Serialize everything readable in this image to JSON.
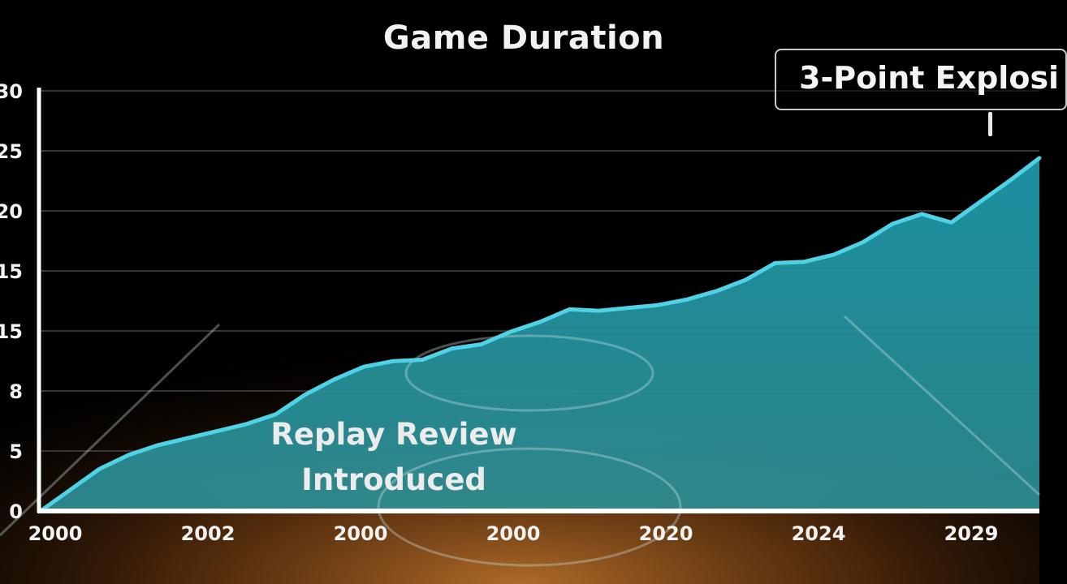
{
  "chart_data": {
    "type": "area",
    "title": "Game Duration",
    "xlabel": "",
    "ylabel": "",
    "y_tick_labels": [
      "0",
      "5",
      "8",
      "15",
      "15",
      "20",
      "25",
      "30"
    ],
    "x_tick_labels": [
      "2000",
      "2002",
      "2000",
      "2000",
      "2020",
      "2024",
      "2029"
    ],
    "ylim": [
      0,
      30
    ],
    "grid": true,
    "series": [
      {
        "values": [
          0,
          1.5,
          3.0,
          4.0,
          4.7,
          5.2,
          5.7,
          6.2,
          6.9,
          8.3,
          9.4,
          10.3,
          10.7,
          10.8,
          11.6,
          11.9,
          12.8,
          13.5,
          14.4,
          14.3,
          14.5,
          14.7,
          15.1,
          15.7,
          16.5,
          17.7,
          17.8,
          18.3,
          19.2,
          20.5,
          21.2,
          20.6,
          22.1,
          23.6,
          25.2
        ]
      }
    ],
    "annotations": [
      {
        "text": "3-Point Explosi",
        "at_point": 33
      },
      {
        "text": "Replay Review Introduced",
        "at_point": 12
      }
    ]
  },
  "style": {
    "line_color": "#4fd2e6",
    "area_color": "#1a8ea0",
    "axis_color": "#ffffff",
    "grid_color": "#4a4a4a",
    "floor_color": "#8a4a18"
  }
}
